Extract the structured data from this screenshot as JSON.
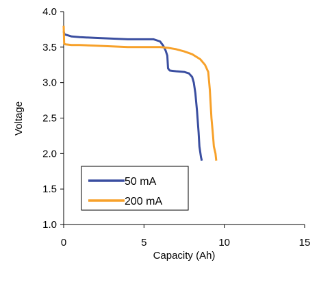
{
  "chart_data": {
    "type": "line",
    "title": "",
    "xlabel": "Capacity (Ah)",
    "ylabel": "Voltage",
    "xlim": [
      0,
      15
    ],
    "ylim": [
      1.0,
      4.0
    ],
    "xticks": [
      "0",
      "5",
      "10",
      "15"
    ],
    "yticks": [
      "1.0",
      "1.5",
      "2.0",
      "2.5",
      "3.0",
      "3.5",
      "4.0"
    ],
    "grid": false,
    "legend": "bottom-left",
    "series": [
      {
        "name": "50 mA",
        "color": "#3a4ea0",
        "points": [
          [
            0.0,
            3.72
          ],
          [
            0.05,
            3.68
          ],
          [
            0.2,
            3.67
          ],
          [
            0.5,
            3.65
          ],
          [
            1.0,
            3.64
          ],
          [
            2.0,
            3.63
          ],
          [
            3.0,
            3.62
          ],
          [
            4.0,
            3.61
          ],
          [
            5.0,
            3.61
          ],
          [
            5.6,
            3.61
          ],
          [
            6.0,
            3.58
          ],
          [
            6.2,
            3.52
          ],
          [
            6.35,
            3.45
          ],
          [
            6.45,
            3.38
          ],
          [
            6.5,
            3.2
          ],
          [
            6.6,
            3.17
          ],
          [
            7.0,
            3.16
          ],
          [
            7.5,
            3.15
          ],
          [
            7.8,
            3.13
          ],
          [
            8.0,
            3.08
          ],
          [
            8.1,
            3.0
          ],
          [
            8.2,
            2.85
          ],
          [
            8.3,
            2.6
          ],
          [
            8.4,
            2.3
          ],
          [
            8.45,
            2.1
          ],
          [
            8.55,
            1.95
          ],
          [
            8.6,
            1.9
          ]
        ]
      },
      {
        "name": "200 mA",
        "color": "#f7a12a",
        "points": [
          [
            0.0,
            3.8
          ],
          [
            0.03,
            3.55
          ],
          [
            0.1,
            3.54
          ],
          [
            0.5,
            3.53
          ],
          [
            1.0,
            3.53
          ],
          [
            2.0,
            3.52
          ],
          [
            3.0,
            3.51
          ],
          [
            4.0,
            3.5
          ],
          [
            5.0,
            3.5
          ],
          [
            6.0,
            3.5
          ],
          [
            6.5,
            3.49
          ],
          [
            7.0,
            3.47
          ],
          [
            7.5,
            3.44
          ],
          [
            8.0,
            3.4
          ],
          [
            8.5,
            3.33
          ],
          [
            8.8,
            3.25
          ],
          [
            9.0,
            3.15
          ],
          [
            9.1,
            2.9
          ],
          [
            9.2,
            2.5
          ],
          [
            9.3,
            2.25
          ],
          [
            9.35,
            2.1
          ],
          [
            9.45,
            2.0
          ],
          [
            9.5,
            1.9
          ]
        ]
      }
    ]
  }
}
